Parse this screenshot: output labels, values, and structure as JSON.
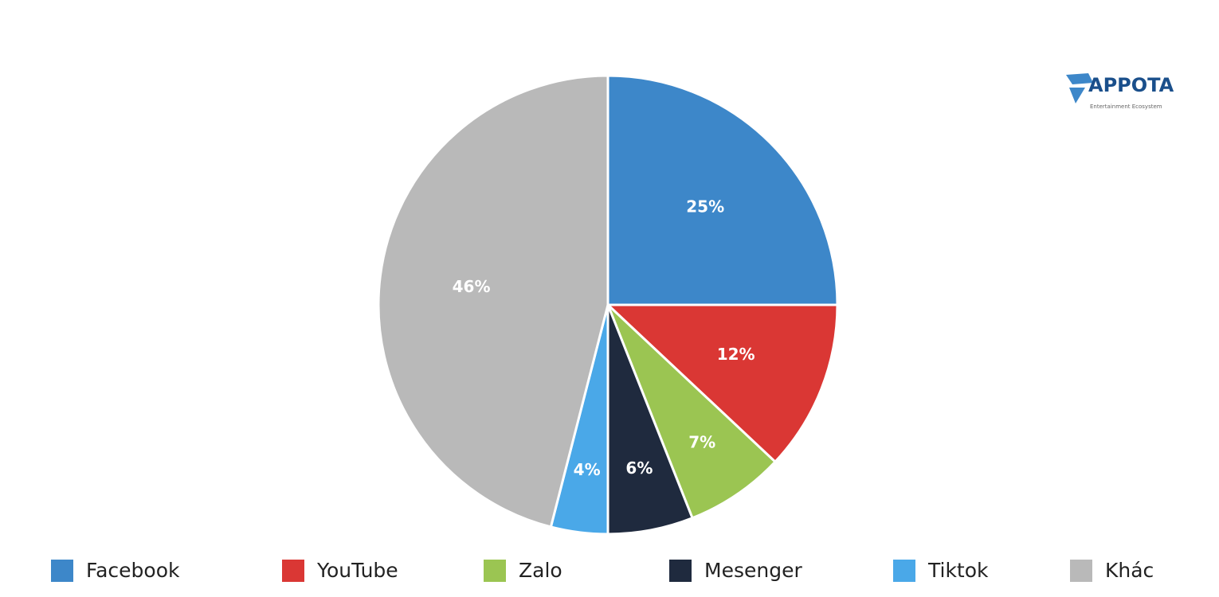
{
  "chart_data": {
    "type": "pie",
    "categories": [
      "Facebook",
      "YouTube",
      "Zalo",
      "Mesenger",
      "Tiktok",
      "Khác"
    ],
    "values": [
      25,
      12,
      7,
      6,
      4,
      46
    ],
    "value_labels": [
      "25%",
      "12%",
      "7%",
      "6%",
      "4%",
      "46%"
    ],
    "colors": [
      "#3d87c9",
      "#da3734",
      "#9bc552",
      "#1f2a3e",
      "#4aa8e8",
      "#b9b9b9"
    ],
    "legend": "bottom"
  },
  "logo": {
    "name": "APPOTA",
    "tagline": "Entertainment Ecosystem"
  }
}
